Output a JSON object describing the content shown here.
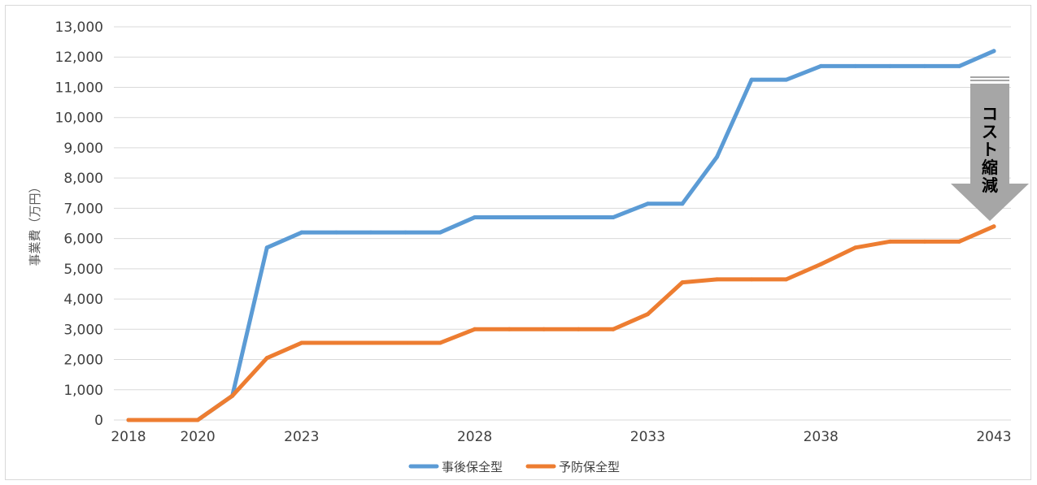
{
  "chart_data": {
    "type": "line",
    "ylabel": "事業費（万円）",
    "xlabel": "",
    "title": "",
    "x_ticks": [
      "2018",
      "2020",
      "2023",
      "2028",
      "2033",
      "2038",
      "2043"
    ],
    "y_ticks": [
      "0",
      "1,000",
      "2,000",
      "3,000",
      "4,000",
      "5,000",
      "6,000",
      "7,000",
      "8,000",
      "9,000",
      "10,000",
      "11,000",
      "12,000",
      "13,000"
    ],
    "xlim": [
      2018,
      2043
    ],
    "ylim": [
      0,
      13000
    ],
    "x": [
      2018,
      2019,
      2020,
      2021,
      2022,
      2023,
      2024,
      2025,
      2026,
      2027,
      2028,
      2029,
      2030,
      2031,
      2032,
      2033,
      2034,
      2035,
      2036,
      2037,
      2038,
      2039,
      2040,
      2041,
      2042,
      2043
    ],
    "series": [
      {
        "name": "事後保全型",
        "color": "#5b9bd5",
        "values": [
          0,
          0,
          0,
          800,
          5700,
          6200,
          6200,
          6200,
          6200,
          6200,
          6700,
          6700,
          6700,
          6700,
          6700,
          7150,
          7150,
          8700,
          11250,
          11250,
          11700,
          11700,
          11700,
          11700,
          11700,
          12200
        ]
      },
      {
        "name": "予防保全型",
        "color": "#ed7d31",
        "values": [
          0,
          0,
          0,
          800,
          2050,
          2550,
          2550,
          2550,
          2550,
          2550,
          3000,
          3000,
          3000,
          3000,
          3000,
          3500,
          4550,
          4650,
          4650,
          4650,
          5150,
          5700,
          5900,
          5900,
          5900,
          6400
        ]
      }
    ],
    "grid": "horizontal",
    "legend_position": "bottom-center",
    "annotation": {
      "text": "コスト縮減",
      "type": "down-arrow"
    }
  }
}
